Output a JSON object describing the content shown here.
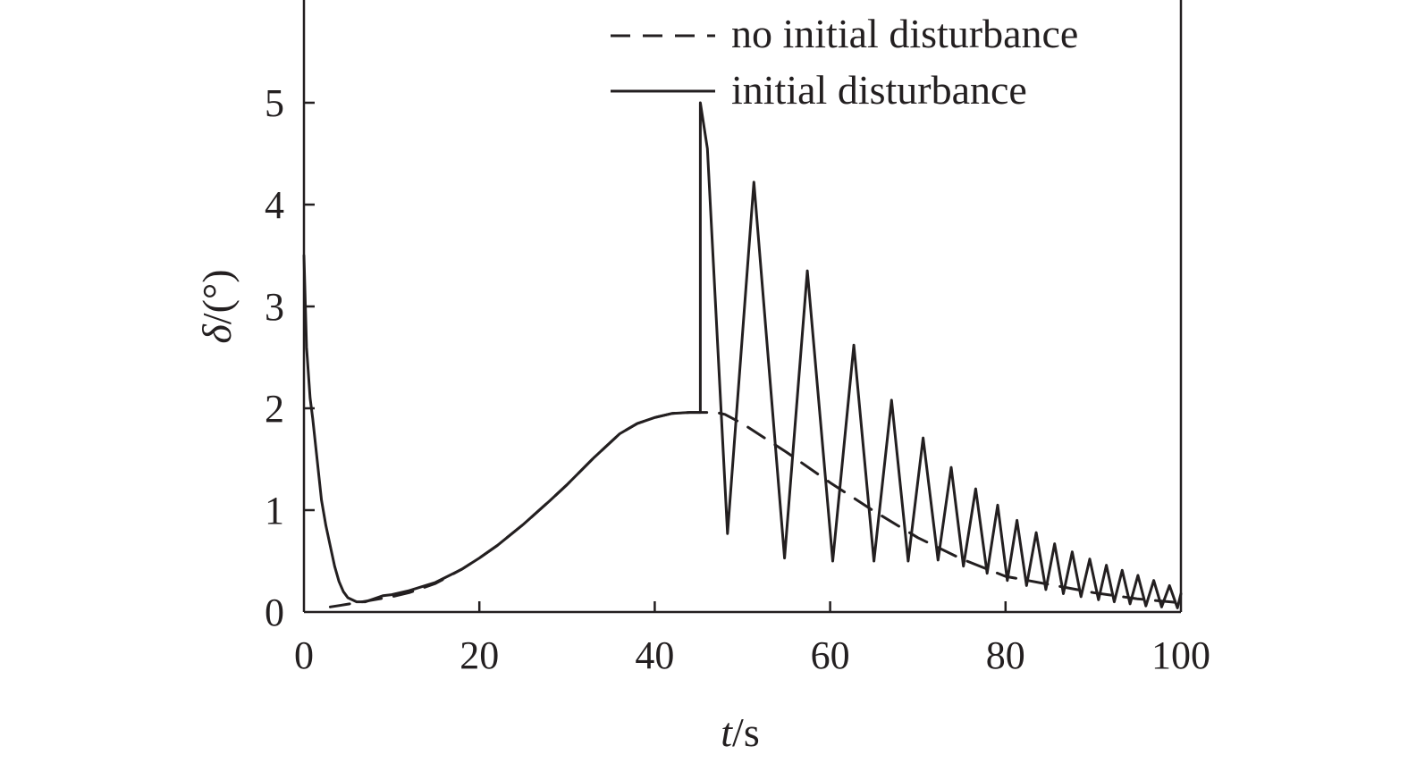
{
  "chart_data": {
    "type": "line",
    "title": "",
    "xlabel": {
      "symbol": "t",
      "unit": "/s"
    },
    "ylabel": {
      "symbol": "δ",
      "unit": "/(°)"
    },
    "xlim": [
      0,
      100
    ],
    "ylim": [
      0,
      6
    ],
    "xticks": [
      0,
      20,
      40,
      60,
      80,
      100
    ],
    "yticks": [
      0,
      1,
      2,
      3,
      4,
      5
    ],
    "grid": false,
    "legend_position": "top-right",
    "series": [
      {
        "name": "no initial disturbance",
        "style": "dashed",
        "color": "#231f20",
        "x": [
          3,
          6,
          8,
          10,
          12,
          15,
          18,
          20,
          22,
          25,
          28,
          30,
          33,
          36,
          38,
          40,
          42,
          44,
          45,
          46,
          47,
          48,
          50,
          55,
          60,
          65,
          70,
          75,
          80,
          85,
          90,
          95,
          100
        ],
        "y": [
          0.05,
          0.09,
          0.12,
          0.15,
          0.19,
          0.28,
          0.42,
          0.53,
          0.65,
          0.86,
          1.09,
          1.25,
          1.51,
          1.75,
          1.85,
          1.91,
          1.95,
          1.96,
          1.96,
          1.96,
          1.96,
          1.94,
          1.85,
          1.57,
          1.27,
          0.99,
          0.73,
          0.52,
          0.35,
          0.27,
          0.19,
          0.13,
          0.09
        ]
      },
      {
        "name": "initial disturbance",
        "style": "solid",
        "color": "#231f20",
        "disturbance_time": 45.2,
        "x": [
          0,
          0.3,
          0.7,
          1,
          1.5,
          2,
          2.5,
          3,
          3.5,
          4,
          4.5,
          5,
          6,
          7,
          8,
          9,
          10,
          12,
          15,
          18,
          20,
          22,
          25,
          28,
          30,
          33,
          36,
          38,
          40,
          42,
          44,
          45.2,
          45.2,
          46.0,
          48.3,
          51.3,
          54.8,
          57.4,
          60.3,
          62.7,
          65.0,
          67.0,
          68.9,
          70.6,
          72.3,
          73.8,
          75.2,
          76.6,
          77.9,
          79.1,
          80.2,
          81.3,
          82.4,
          83.5,
          84.6,
          85.6,
          86.6,
          87.6,
          88.6,
          89.6,
          90.6,
          91.5,
          92.4,
          93.3,
          94.2,
          95.1,
          96.0,
          96.9,
          97.8,
          98.7,
          99.6,
          100
        ],
        "y": [
          3.5,
          2.6,
          2.1,
          1.9,
          1.5,
          1.1,
          0.85,
          0.65,
          0.45,
          0.3,
          0.2,
          0.14,
          0.1,
          0.1,
          0.13,
          0.16,
          0.17,
          0.21,
          0.29,
          0.42,
          0.53,
          0.65,
          0.86,
          1.09,
          1.25,
          1.51,
          1.75,
          1.85,
          1.91,
          1.95,
          1.96,
          1.96,
          5.0,
          4.55,
          0.77,
          4.22,
          0.53,
          3.35,
          0.5,
          2.62,
          0.5,
          2.08,
          0.5,
          1.71,
          0.51,
          1.42,
          0.45,
          1.21,
          0.38,
          1.05,
          0.31,
          0.9,
          0.26,
          0.78,
          0.22,
          0.67,
          0.18,
          0.59,
          0.15,
          0.52,
          0.12,
          0.46,
          0.1,
          0.41,
          0.08,
          0.36,
          0.06,
          0.31,
          0.05,
          0.26,
          0.04,
          0.18
        ]
      }
    ]
  }
}
